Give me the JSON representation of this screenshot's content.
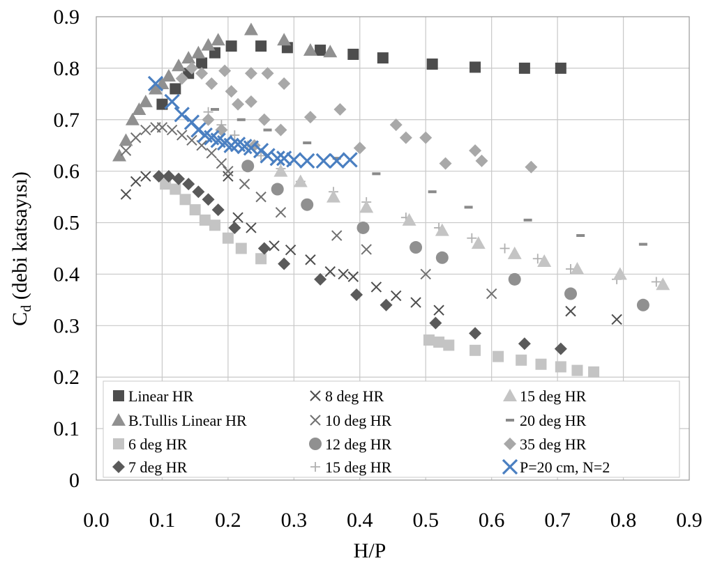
{
  "chart_data": {
    "type": "scatter",
    "xlabel": "H/P",
    "ylabel_main": "C",
    "ylabel_sub": "d",
    "ylabel_rest": " (debi katsayısı)",
    "xlim": [
      0,
      0.9
    ],
    "ylim": [
      0,
      0.9
    ],
    "x_ticks": [
      "0.0",
      "0.1",
      "0.2",
      "0.3",
      "0.4",
      "0.5",
      "0.6",
      "0.7",
      "0.8",
      "0.9"
    ],
    "y_ticks": [
      "0",
      "0.1",
      "0.2",
      "0.3",
      "0.4",
      "0.5",
      "0.6",
      "0.7",
      "0.8",
      "0.9"
    ],
    "grid": true,
    "legend_position": "bottom-inside",
    "series": [
      {
        "name": "Linear HR",
        "marker": "square",
        "color": "#4d4d4d",
        "points": [
          [
            0.1,
            0.73
          ],
          [
            0.12,
            0.76
          ],
          [
            0.14,
            0.79
          ],
          [
            0.16,
            0.81
          ],
          [
            0.18,
            0.83
          ],
          [
            0.205,
            0.843
          ],
          [
            0.25,
            0.843
          ],
          [
            0.29,
            0.84
          ],
          [
            0.34,
            0.835
          ],
          [
            0.39,
            0.827
          ],
          [
            0.435,
            0.82
          ],
          [
            0.51,
            0.808
          ],
          [
            0.575,
            0.802
          ],
          [
            0.65,
            0.8
          ],
          [
            0.705,
            0.8
          ]
        ]
      },
      {
        "name": "B.Tullis Linear HR",
        "marker": "triangle",
        "color": "#909090",
        "points": [
          [
            0.035,
            0.63
          ],
          [
            0.045,
            0.66
          ],
          [
            0.055,
            0.7
          ],
          [
            0.065,
            0.72
          ],
          [
            0.075,
            0.735
          ],
          [
            0.09,
            0.76
          ],
          [
            0.1,
            0.77
          ],
          [
            0.11,
            0.785
          ],
          [
            0.125,
            0.805
          ],
          [
            0.14,
            0.82
          ],
          [
            0.155,
            0.83
          ],
          [
            0.17,
            0.845
          ],
          [
            0.185,
            0.855
          ],
          [
            0.235,
            0.875
          ],
          [
            0.285,
            0.855
          ],
          [
            0.325,
            0.835
          ],
          [
            0.355,
            0.832
          ]
        ]
      },
      {
        "name": "6 deg HR",
        "marker": "square",
        "color": "#c4c4c4",
        "points": [
          [
            0.105,
            0.575
          ],
          [
            0.12,
            0.565
          ],
          [
            0.135,
            0.545
          ],
          [
            0.15,
            0.525
          ],
          [
            0.165,
            0.505
          ],
          [
            0.18,
            0.495
          ],
          [
            0.2,
            0.47
          ],
          [
            0.22,
            0.45
          ],
          [
            0.25,
            0.43
          ],
          [
            0.505,
            0.272
          ],
          [
            0.52,
            0.268
          ],
          [
            0.535,
            0.262
          ],
          [
            0.575,
            0.252
          ],
          [
            0.61,
            0.24
          ],
          [
            0.645,
            0.233
          ],
          [
            0.675,
            0.225
          ],
          [
            0.705,
            0.22
          ],
          [
            0.73,
            0.213
          ],
          [
            0.755,
            0.21
          ]
        ]
      },
      {
        "name": "7 deg HR",
        "marker": "diamond",
        "color": "#5a5a5a",
        "points": [
          [
            0.095,
            0.59
          ],
          [
            0.11,
            0.59
          ],
          [
            0.125,
            0.585
          ],
          [
            0.14,
            0.575
          ],
          [
            0.155,
            0.56
          ],
          [
            0.17,
            0.545
          ],
          [
            0.185,
            0.525
          ],
          [
            0.21,
            0.49
          ],
          [
            0.255,
            0.45
          ],
          [
            0.285,
            0.42
          ],
          [
            0.34,
            0.39
          ],
          [
            0.395,
            0.36
          ],
          [
            0.44,
            0.34
          ],
          [
            0.515,
            0.305
          ],
          [
            0.575,
            0.285
          ],
          [
            0.65,
            0.265
          ],
          [
            0.705,
            0.255
          ]
        ]
      },
      {
        "name": "8 deg HR",
        "marker": "x",
        "color": "#4d4d4d",
        "points": [
          [
            0.045,
            0.555
          ],
          [
            0.06,
            0.58
          ],
          [
            0.075,
            0.59
          ],
          [
            0.2,
            0.59
          ],
          [
            0.215,
            0.51
          ],
          [
            0.235,
            0.49
          ],
          [
            0.27,
            0.455
          ],
          [
            0.295,
            0.447
          ],
          [
            0.325,
            0.428
          ],
          [
            0.355,
            0.405
          ],
          [
            0.375,
            0.4
          ],
          [
            0.39,
            0.395
          ],
          [
            0.425,
            0.375
          ],
          [
            0.455,
            0.358
          ],
          [
            0.485,
            0.345
          ],
          [
            0.52,
            0.33
          ],
          [
            0.72,
            0.328
          ],
          [
            0.79,
            0.312
          ]
        ]
      },
      {
        "name": "10 deg HR",
        "marker": "x",
        "color": "#707070",
        "points": [
          [
            0.045,
            0.64
          ],
          [
            0.06,
            0.665
          ],
          [
            0.075,
            0.68
          ],
          [
            0.09,
            0.685
          ],
          [
            0.1,
            0.685
          ],
          [
            0.115,
            0.68
          ],
          [
            0.13,
            0.67
          ],
          [
            0.145,
            0.66
          ],
          [
            0.16,
            0.65
          ],
          [
            0.175,
            0.635
          ],
          [
            0.19,
            0.615
          ],
          [
            0.2,
            0.6
          ],
          [
            0.225,
            0.575
          ],
          [
            0.25,
            0.55
          ],
          [
            0.28,
            0.52
          ],
          [
            0.365,
            0.475
          ],
          [
            0.41,
            0.448
          ],
          [
            0.5,
            0.4
          ],
          [
            0.6,
            0.362
          ]
        ]
      },
      {
        "name": "12 deg HR",
        "marker": "circle",
        "color": "#909090",
        "points": [
          [
            0.23,
            0.61
          ],
          [
            0.275,
            0.565
          ],
          [
            0.32,
            0.535
          ],
          [
            0.405,
            0.49
          ],
          [
            0.485,
            0.452
          ],
          [
            0.525,
            0.432
          ],
          [
            0.635,
            0.39
          ],
          [
            0.72,
            0.362
          ],
          [
            0.83,
            0.34
          ]
        ]
      },
      {
        "name": "15 deg HR",
        "marker": "plus",
        "color": "#b0b0b0",
        "points": [
          [
            0.17,
            0.715
          ],
          [
            0.19,
            0.69
          ],
          [
            0.21,
            0.67
          ],
          [
            0.23,
            0.65
          ],
          [
            0.25,
            0.63
          ],
          [
            0.28,
            0.605
          ],
          [
            0.31,
            0.58
          ],
          [
            0.36,
            0.56
          ],
          [
            0.41,
            0.54
          ],
          [
            0.47,
            0.51
          ],
          [
            0.52,
            0.49
          ],
          [
            0.57,
            0.47
          ],
          [
            0.62,
            0.45
          ],
          [
            0.67,
            0.43
          ],
          [
            0.72,
            0.41
          ],
          [
            0.79,
            0.39
          ],
          [
            0.85,
            0.385
          ]
        ]
      },
      {
        "name": "15 deg HR",
        "marker": "triangle",
        "color": "#c4c4c4",
        "points": [
          [
            0.28,
            0.6
          ],
          [
            0.31,
            0.58
          ],
          [
            0.36,
            0.55
          ],
          [
            0.41,
            0.53
          ],
          [
            0.475,
            0.505
          ],
          [
            0.525,
            0.485
          ],
          [
            0.58,
            0.46
          ],
          [
            0.635,
            0.44
          ],
          [
            0.68,
            0.425
          ],
          [
            0.73,
            0.41
          ],
          [
            0.795,
            0.4
          ],
          [
            0.86,
            0.38
          ]
        ]
      },
      {
        "name": "20 deg HR",
        "marker": "dash",
        "color": "#8a8a8a",
        "points": [
          [
            0.18,
            0.72
          ],
          [
            0.22,
            0.7
          ],
          [
            0.26,
            0.68
          ],
          [
            0.32,
            0.655
          ],
          [
            0.365,
            0.625
          ],
          [
            0.425,
            0.595
          ],
          [
            0.51,
            0.56
          ],
          [
            0.565,
            0.53
          ],
          [
            0.655,
            0.505
          ],
          [
            0.735,
            0.475
          ],
          [
            0.83,
            0.458
          ]
        ]
      },
      {
        "name": "35 deg HR",
        "marker": "diamond",
        "color": "#a8a8a8",
        "points": [
          [
            0.13,
            0.78
          ],
          [
            0.145,
            0.8
          ],
          [
            0.16,
            0.79
          ],
          [
            0.175,
            0.77
          ],
          [
            0.195,
            0.795
          ],
          [
            0.205,
            0.755
          ],
          [
            0.215,
            0.73
          ],
          [
            0.235,
            0.79
          ],
          [
            0.26,
            0.79
          ],
          [
            0.285,
            0.77
          ],
          [
            0.235,
            0.735
          ],
          [
            0.255,
            0.7
          ],
          [
            0.28,
            0.68
          ],
          [
            0.325,
            0.705
          ],
          [
            0.37,
            0.72
          ],
          [
            0.4,
            0.645
          ],
          [
            0.455,
            0.69
          ],
          [
            0.47,
            0.665
          ],
          [
            0.5,
            0.665
          ],
          [
            0.53,
            0.615
          ],
          [
            0.575,
            0.64
          ],
          [
            0.585,
            0.62
          ],
          [
            0.66,
            0.608
          ],
          [
            0.17,
            0.7
          ],
          [
            0.19,
            0.68
          ],
          [
            0.24,
            0.65
          ]
        ]
      },
      {
        "name": "P=20 cm, N=2",
        "marker": "x-big",
        "color": "#4a7fc1",
        "points": [
          [
            0.09,
            0.77
          ],
          [
            0.115,
            0.735
          ],
          [
            0.13,
            0.71
          ],
          [
            0.145,
            0.695
          ],
          [
            0.155,
            0.68
          ],
          [
            0.165,
            0.67
          ],
          [
            0.175,
            0.665
          ],
          [
            0.185,
            0.66
          ],
          [
            0.195,
            0.655
          ],
          [
            0.205,
            0.65
          ],
          [
            0.215,
            0.652
          ],
          [
            0.225,
            0.648
          ],
          [
            0.235,
            0.645
          ],
          [
            0.25,
            0.64
          ],
          [
            0.26,
            0.63
          ],
          [
            0.275,
            0.625
          ],
          [
            0.285,
            0.625
          ],
          [
            0.3,
            0.622
          ],
          [
            0.32,
            0.62
          ],
          [
            0.345,
            0.62
          ],
          [
            0.365,
            0.62
          ],
          [
            0.385,
            0.622
          ]
        ]
      }
    ]
  }
}
